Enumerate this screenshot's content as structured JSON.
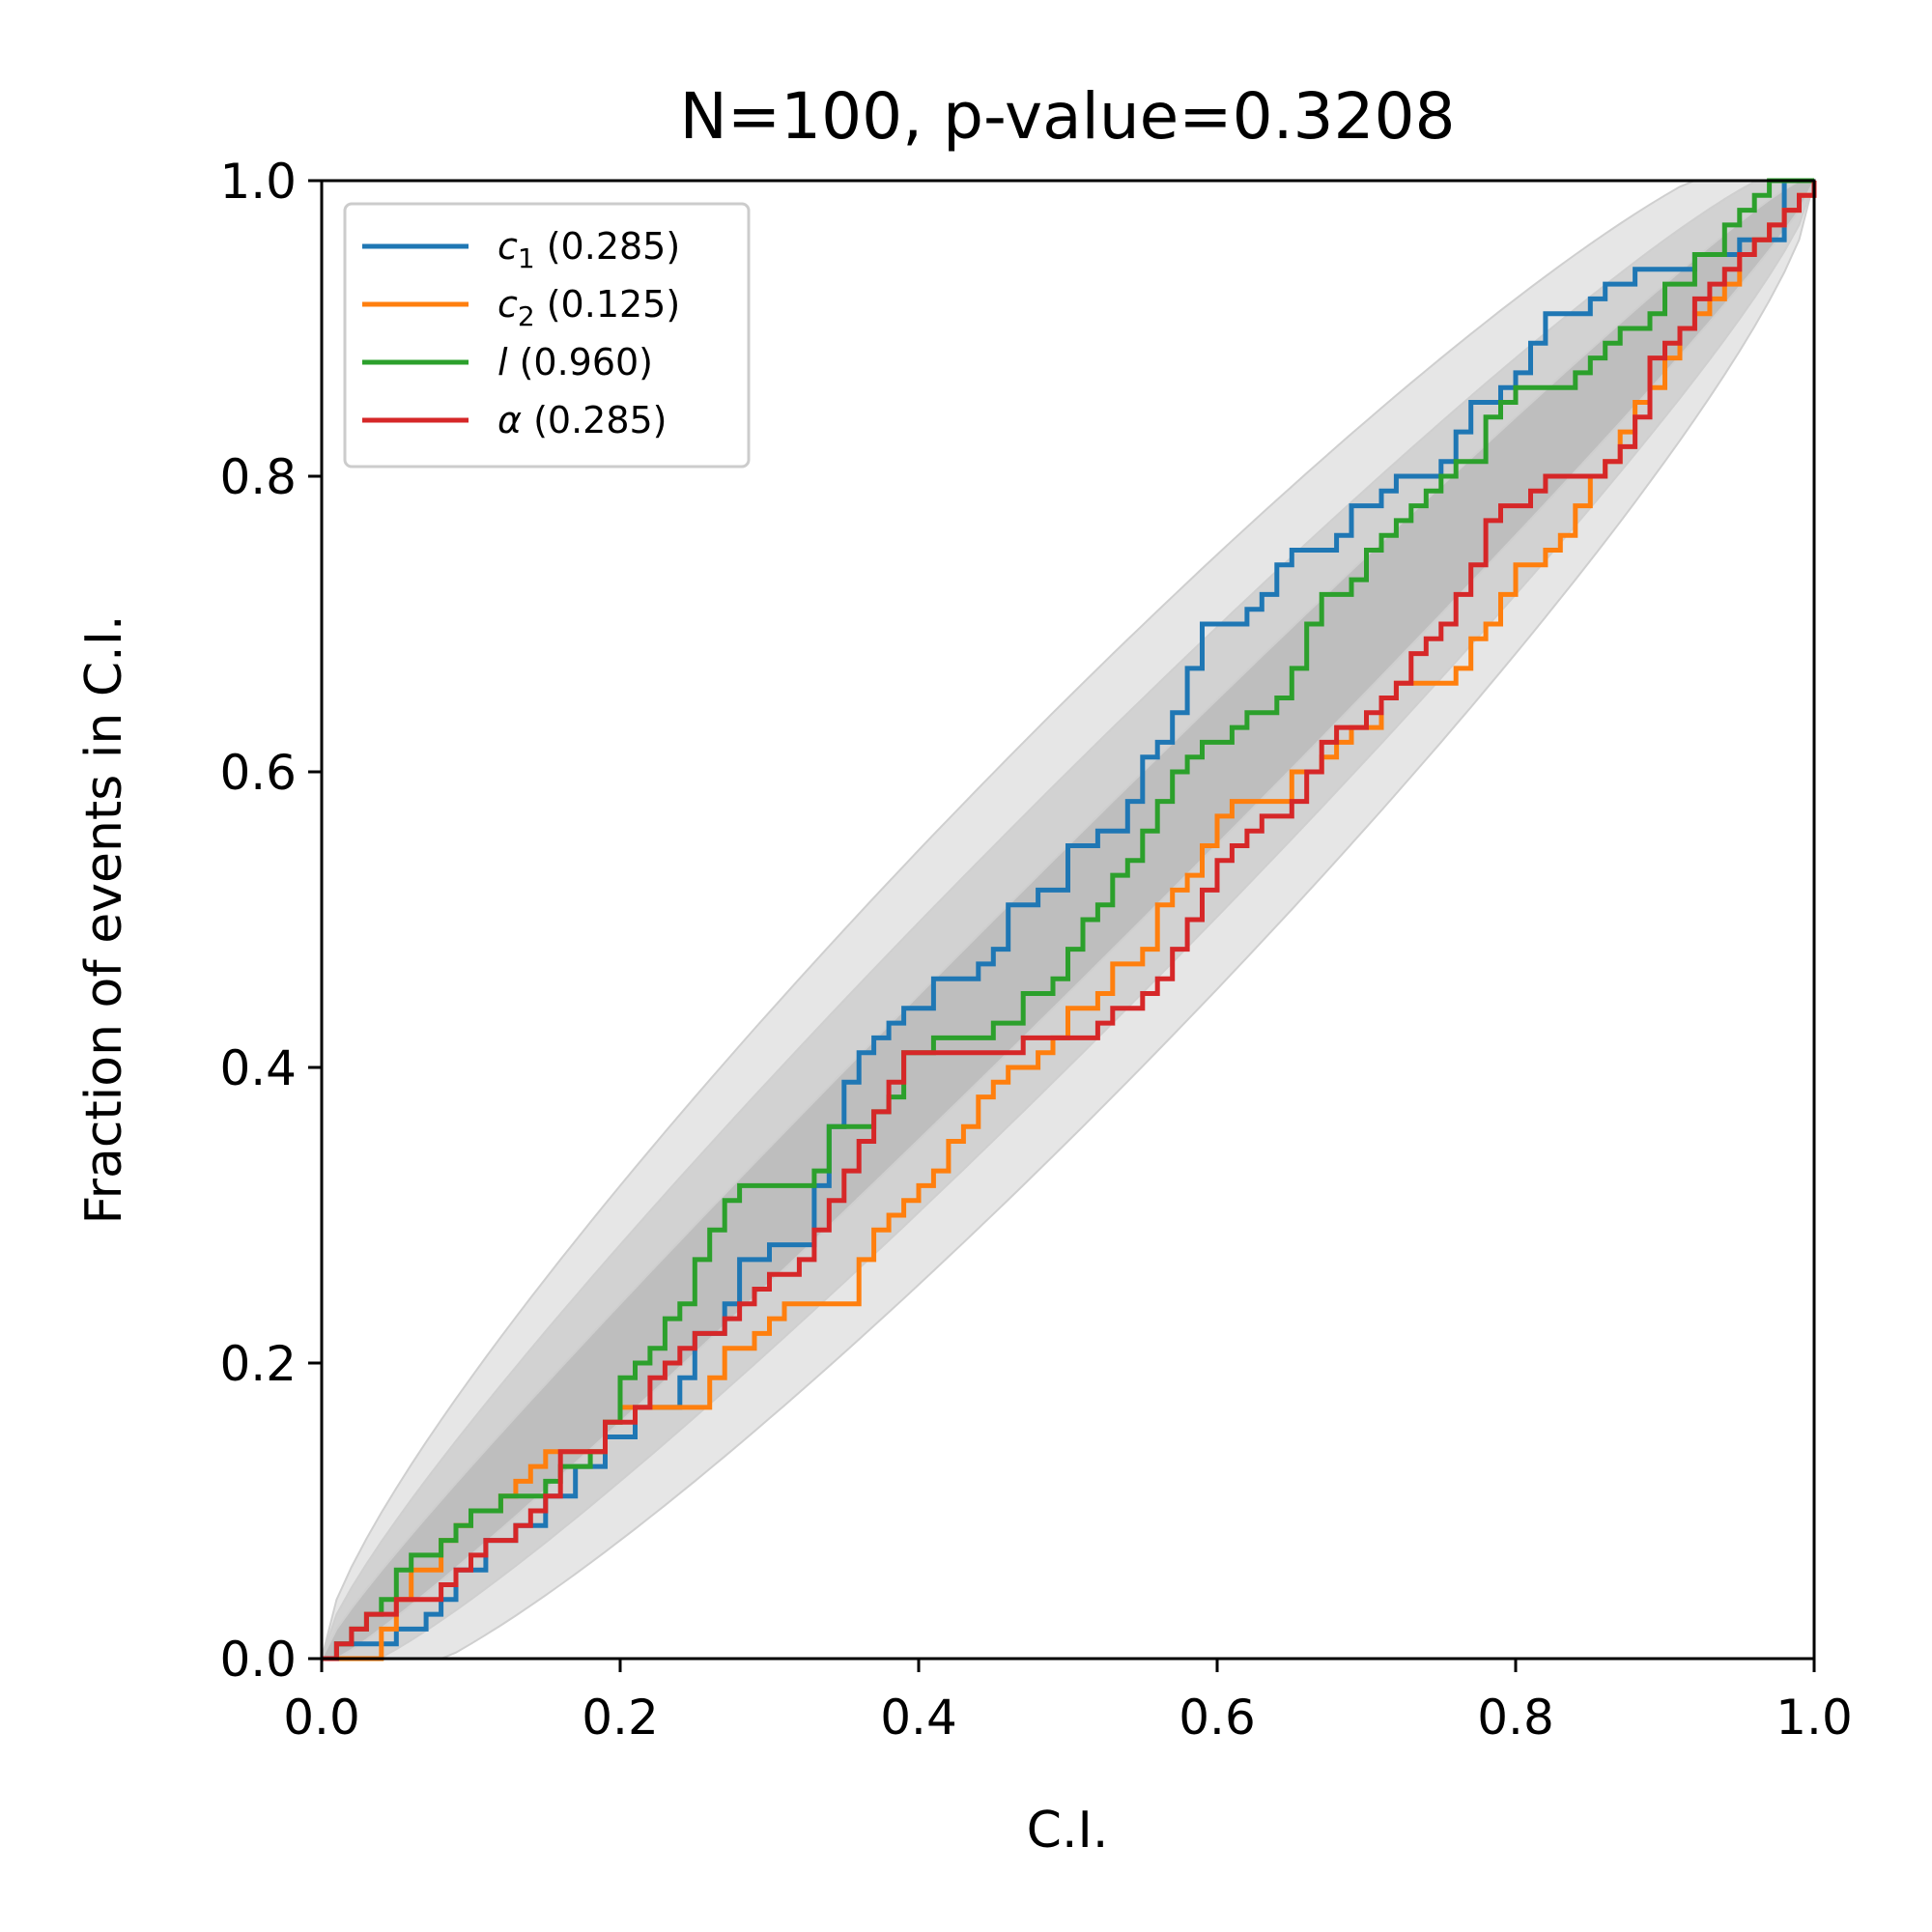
{
  "chart_data": {
    "type": "line",
    "title": "N=100, p-value=0.3208",
    "xlabel": "C.I.",
    "ylabel": "Fraction of events in C.I.",
    "xlim": [
      0,
      1
    ],
    "ylim": [
      0,
      1
    ],
    "xticks": [
      "0.0",
      "0.2",
      "0.4",
      "0.6",
      "0.8",
      "1.0"
    ],
    "yticks": [
      "0.0",
      "0.2",
      "0.4",
      "0.6",
      "0.8",
      "1.0"
    ],
    "legend_position": "top-left",
    "bands": [
      {
        "level": "3-sigma",
        "color": "#e6e6e6",
        "halfwidth_scale": 3.0
      },
      {
        "level": "2-sigma",
        "color": "#d2d2d2",
        "halfwidth_scale": 2.0
      },
      {
        "level": "1-sigma",
        "color": "#bebebe",
        "halfwidth_scale": 1.0
      }
    ],
    "series": [
      {
        "name": "c",
        "subscript": "1",
        "pvalue": "(0.285)",
        "color": "#1f77b4",
        "points": [
          [
            0,
            0
          ],
          [
            0.01,
            0.0
          ],
          [
            0.01,
            0.01
          ],
          [
            0.05,
            0.01
          ],
          [
            0.05,
            0.02
          ],
          [
            0.07,
            0.02
          ],
          [
            0.07,
            0.03
          ],
          [
            0.08,
            0.04
          ],
          [
            0.09,
            0.06
          ],
          [
            0.11,
            0.08
          ],
          [
            0.13,
            0.09
          ],
          [
            0.15,
            0.11
          ],
          [
            0.17,
            0.13
          ],
          [
            0.19,
            0.15
          ],
          [
            0.21,
            0.17
          ],
          [
            0.23,
            0.17
          ],
          [
            0.24,
            0.19
          ],
          [
            0.25,
            0.22
          ],
          [
            0.27,
            0.24
          ],
          [
            0.28,
            0.27
          ],
          [
            0.3,
            0.28
          ],
          [
            0.32,
            0.28
          ],
          [
            0.33,
            0.32
          ],
          [
            0.34,
            0.36
          ],
          [
            0.35,
            0.39
          ],
          [
            0.36,
            0.41
          ],
          [
            0.37,
            0.42
          ],
          [
            0.38,
            0.43
          ],
          [
            0.39,
            0.44
          ],
          [
            0.41,
            0.46
          ],
          [
            0.43,
            0.46
          ],
          [
            0.44,
            0.47
          ],
          [
            0.45,
            0.48
          ],
          [
            0.46,
            0.51
          ],
          [
            0.48,
            0.52
          ],
          [
            0.5,
            0.55
          ],
          [
            0.52,
            0.56
          ],
          [
            0.54,
            0.58
          ],
          [
            0.55,
            0.61
          ],
          [
            0.56,
            0.62
          ],
          [
            0.57,
            0.64
          ],
          [
            0.58,
            0.67
          ],
          [
            0.59,
            0.7
          ],
          [
            0.61,
            0.7
          ],
          [
            0.62,
            0.71
          ],
          [
            0.63,
            0.72
          ],
          [
            0.64,
            0.74
          ],
          [
            0.65,
            0.75
          ],
          [
            0.68,
            0.76
          ],
          [
            0.69,
            0.78
          ],
          [
            0.71,
            0.79
          ],
          [
            0.72,
            0.8
          ],
          [
            0.75,
            0.81
          ],
          [
            0.76,
            0.83
          ],
          [
            0.77,
            0.85
          ],
          [
            0.79,
            0.86
          ],
          [
            0.8,
            0.87
          ],
          [
            0.81,
            0.89
          ],
          [
            0.82,
            0.91
          ],
          [
            0.85,
            0.92
          ],
          [
            0.86,
            0.93
          ],
          [
            0.88,
            0.94
          ],
          [
            0.91,
            0.94
          ],
          [
            0.92,
            0.95
          ],
          [
            0.94,
            0.95
          ],
          [
            0.95,
            0.96
          ],
          [
            0.97,
            0.96
          ],
          [
            0.98,
            1.0
          ],
          [
            1.0,
            1.0
          ]
        ]
      },
      {
        "name": "c",
        "subscript": "2",
        "pvalue": "(0.125)",
        "color": "#ff7f0e",
        "points": [
          [
            0,
            0
          ],
          [
            0.03,
            0.0
          ],
          [
            0.04,
            0.02
          ],
          [
            0.05,
            0.04
          ],
          [
            0.06,
            0.06
          ],
          [
            0.08,
            0.08
          ],
          [
            0.09,
            0.09
          ],
          [
            0.1,
            0.1
          ],
          [
            0.12,
            0.11
          ],
          [
            0.13,
            0.12
          ],
          [
            0.14,
            0.13
          ],
          [
            0.15,
            0.14
          ],
          [
            0.18,
            0.14
          ],
          [
            0.19,
            0.16
          ],
          [
            0.2,
            0.17
          ],
          [
            0.25,
            0.17
          ],
          [
            0.26,
            0.19
          ],
          [
            0.27,
            0.21
          ],
          [
            0.29,
            0.22
          ],
          [
            0.3,
            0.23
          ],
          [
            0.31,
            0.24
          ],
          [
            0.35,
            0.24
          ],
          [
            0.36,
            0.27
          ],
          [
            0.37,
            0.29
          ],
          [
            0.38,
            0.3
          ],
          [
            0.39,
            0.31
          ],
          [
            0.4,
            0.32
          ],
          [
            0.41,
            0.33
          ],
          [
            0.42,
            0.35
          ],
          [
            0.43,
            0.36
          ],
          [
            0.44,
            0.38
          ],
          [
            0.45,
            0.39
          ],
          [
            0.46,
            0.4
          ],
          [
            0.48,
            0.41
          ],
          [
            0.49,
            0.42
          ],
          [
            0.5,
            0.44
          ],
          [
            0.52,
            0.45
          ],
          [
            0.53,
            0.47
          ],
          [
            0.55,
            0.48
          ],
          [
            0.56,
            0.51
          ],
          [
            0.57,
            0.52
          ],
          [
            0.58,
            0.53
          ],
          [
            0.59,
            0.55
          ],
          [
            0.6,
            0.57
          ],
          [
            0.61,
            0.58
          ],
          [
            0.64,
            0.58
          ],
          [
            0.65,
            0.6
          ],
          [
            0.67,
            0.61
          ],
          [
            0.68,
            0.62
          ],
          [
            0.69,
            0.63
          ],
          [
            0.71,
            0.65
          ],
          [
            0.72,
            0.66
          ],
          [
            0.75,
            0.66
          ],
          [
            0.76,
            0.67
          ],
          [
            0.77,
            0.69
          ],
          [
            0.78,
            0.7
          ],
          [
            0.79,
            0.72
          ],
          [
            0.8,
            0.74
          ],
          [
            0.82,
            0.75
          ],
          [
            0.83,
            0.76
          ],
          [
            0.84,
            0.78
          ],
          [
            0.85,
            0.8
          ],
          [
            0.86,
            0.81
          ],
          [
            0.87,
            0.83
          ],
          [
            0.88,
            0.85
          ],
          [
            0.89,
            0.86
          ],
          [
            0.9,
            0.88
          ],
          [
            0.91,
            0.9
          ],
          [
            0.92,
            0.91
          ],
          [
            0.93,
            0.92
          ],
          [
            0.94,
            0.93
          ],
          [
            0.95,
            0.95
          ],
          [
            0.96,
            0.96
          ],
          [
            0.97,
            0.97
          ],
          [
            0.98,
            0.98
          ],
          [
            0.99,
            0.99
          ],
          [
            1.0,
            1.0
          ]
        ]
      },
      {
        "name": "l",
        "subscript": "",
        "pvalue": "(0.960)",
        "color": "#2ca02c",
        "points": [
          [
            0,
            0
          ],
          [
            0.01,
            0.01
          ],
          [
            0.02,
            0.02
          ],
          [
            0.03,
            0.03
          ],
          [
            0.04,
            0.04
          ],
          [
            0.05,
            0.06
          ],
          [
            0.06,
            0.07
          ],
          [
            0.08,
            0.08
          ],
          [
            0.09,
            0.09
          ],
          [
            0.1,
            0.1
          ],
          [
            0.12,
            0.11
          ],
          [
            0.15,
            0.12
          ],
          [
            0.16,
            0.13
          ],
          [
            0.18,
            0.14
          ],
          [
            0.19,
            0.16
          ],
          [
            0.2,
            0.19
          ],
          [
            0.21,
            0.2
          ],
          [
            0.22,
            0.21
          ],
          [
            0.23,
            0.23
          ],
          [
            0.24,
            0.24
          ],
          [
            0.25,
            0.27
          ],
          [
            0.26,
            0.29
          ],
          [
            0.27,
            0.31
          ],
          [
            0.28,
            0.32
          ],
          [
            0.33,
            0.33
          ],
          [
            0.34,
            0.36
          ],
          [
            0.37,
            0.37
          ],
          [
            0.38,
            0.38
          ],
          [
            0.39,
            0.41
          ],
          [
            0.41,
            0.42
          ],
          [
            0.45,
            0.43
          ],
          [
            0.47,
            0.45
          ],
          [
            0.49,
            0.46
          ],
          [
            0.5,
            0.48
          ],
          [
            0.51,
            0.5
          ],
          [
            0.52,
            0.51
          ],
          [
            0.53,
            0.53
          ],
          [
            0.54,
            0.54
          ],
          [
            0.55,
            0.56
          ],
          [
            0.56,
            0.58
          ],
          [
            0.57,
            0.6
          ],
          [
            0.58,
            0.61
          ],
          [
            0.59,
            0.62
          ],
          [
            0.6,
            0.62
          ],
          [
            0.61,
            0.63
          ],
          [
            0.62,
            0.64
          ],
          [
            0.64,
            0.65
          ],
          [
            0.65,
            0.67
          ],
          [
            0.66,
            0.7
          ],
          [
            0.67,
            0.72
          ],
          [
            0.69,
            0.73
          ],
          [
            0.7,
            0.75
          ],
          [
            0.71,
            0.76
          ],
          [
            0.72,
            0.77
          ],
          [
            0.73,
            0.78
          ],
          [
            0.74,
            0.79
          ],
          [
            0.75,
            0.8
          ],
          [
            0.76,
            0.81
          ],
          [
            0.78,
            0.84
          ],
          [
            0.79,
            0.85
          ],
          [
            0.8,
            0.86
          ],
          [
            0.84,
            0.87
          ],
          [
            0.85,
            0.88
          ],
          [
            0.86,
            0.89
          ],
          [
            0.87,
            0.9
          ],
          [
            0.89,
            0.91
          ],
          [
            0.9,
            0.93
          ],
          [
            0.92,
            0.95
          ],
          [
            0.94,
            0.97
          ],
          [
            0.95,
            0.98
          ],
          [
            0.96,
            0.99
          ],
          [
            0.97,
            1.0
          ],
          [
            1.0,
            1.0
          ]
        ]
      },
      {
        "name": "α",
        "subscript": "",
        "pvalue": "(0.285)",
        "color": "#d62728",
        "points": [
          [
            0,
            0
          ],
          [
            0.01,
            0.01
          ],
          [
            0.02,
            0.02
          ],
          [
            0.03,
            0.03
          ],
          [
            0.05,
            0.04
          ],
          [
            0.07,
            0.04
          ],
          [
            0.08,
            0.05
          ],
          [
            0.09,
            0.06
          ],
          [
            0.1,
            0.07
          ],
          [
            0.11,
            0.08
          ],
          [
            0.13,
            0.09
          ],
          [
            0.14,
            0.1
          ],
          [
            0.15,
            0.11
          ],
          [
            0.16,
            0.14
          ],
          [
            0.17,
            0.14
          ],
          [
            0.19,
            0.16
          ],
          [
            0.21,
            0.17
          ],
          [
            0.22,
            0.19
          ],
          [
            0.23,
            0.2
          ],
          [
            0.24,
            0.21
          ],
          [
            0.25,
            0.22
          ],
          [
            0.27,
            0.23
          ],
          [
            0.28,
            0.24
          ],
          [
            0.29,
            0.25
          ],
          [
            0.3,
            0.26
          ],
          [
            0.32,
            0.27
          ],
          [
            0.33,
            0.29
          ],
          [
            0.34,
            0.31
          ],
          [
            0.35,
            0.33
          ],
          [
            0.36,
            0.35
          ],
          [
            0.37,
            0.37
          ],
          [
            0.38,
            0.39
          ],
          [
            0.39,
            0.41
          ],
          [
            0.42,
            0.41
          ],
          [
            0.47,
            0.42
          ],
          [
            0.52,
            0.43
          ],
          [
            0.53,
            0.44
          ],
          [
            0.55,
            0.45
          ],
          [
            0.56,
            0.46
          ],
          [
            0.57,
            0.48
          ],
          [
            0.58,
            0.5
          ],
          [
            0.59,
            0.52
          ],
          [
            0.6,
            0.54
          ],
          [
            0.61,
            0.55
          ],
          [
            0.62,
            0.56
          ],
          [
            0.63,
            0.57
          ],
          [
            0.65,
            0.58
          ],
          [
            0.66,
            0.6
          ],
          [
            0.67,
            0.62
          ],
          [
            0.68,
            0.63
          ],
          [
            0.7,
            0.64
          ],
          [
            0.71,
            0.65
          ],
          [
            0.72,
            0.66
          ],
          [
            0.73,
            0.68
          ],
          [
            0.74,
            0.69
          ],
          [
            0.75,
            0.7
          ],
          [
            0.76,
            0.72
          ],
          [
            0.77,
            0.74
          ],
          [
            0.78,
            0.77
          ],
          [
            0.79,
            0.78
          ],
          [
            0.81,
            0.79
          ],
          [
            0.82,
            0.8
          ],
          [
            0.86,
            0.81
          ],
          [
            0.87,
            0.82
          ],
          [
            0.88,
            0.84
          ],
          [
            0.89,
            0.88
          ],
          [
            0.9,
            0.89
          ],
          [
            0.91,
            0.9
          ],
          [
            0.92,
            0.92
          ],
          [
            0.93,
            0.93
          ],
          [
            0.94,
            0.94
          ],
          [
            0.95,
            0.95
          ],
          [
            0.96,
            0.96
          ],
          [
            0.97,
            0.97
          ],
          [
            0.98,
            0.98
          ],
          [
            0.99,
            0.99
          ],
          [
            1.0,
            1.0
          ]
        ]
      }
    ]
  }
}
